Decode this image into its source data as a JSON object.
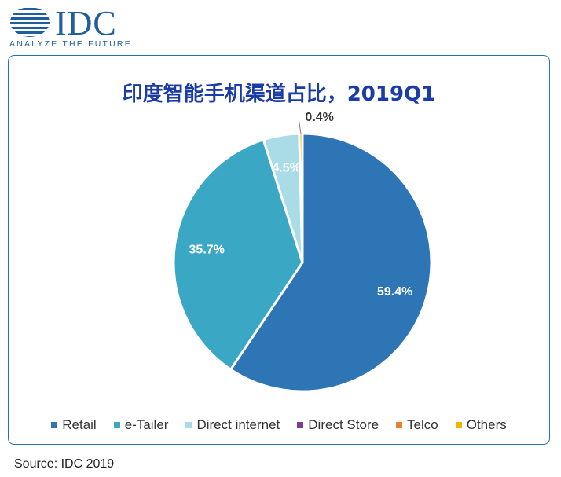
{
  "logo": {
    "wordmark": "IDC",
    "tagline": "ANALYZE THE FUTURE"
  },
  "source": "Source: IDC 2019",
  "chart_data": {
    "type": "pie",
    "title": "印度智能手机渠道占比，2019Q1",
    "categories": [
      "Retail",
      "e-Tailer",
      "Direct internet",
      "Direct Store",
      "Telco",
      "Others"
    ],
    "values": [
      59.4,
      35.7,
      4.5,
      0,
      0,
      0.4
    ],
    "data_labels": [
      "59.4%",
      "35.7%",
      "4.5%",
      "",
      "",
      "0.4%"
    ],
    "colors": [
      "#2e75b6",
      "#3aa8c4",
      "#a9dce6",
      "#7d3c98",
      "#ed7d31",
      "#f0b400"
    ],
    "legend_position": "bottom",
    "start_angle": "12 o'clock, clockwise"
  }
}
